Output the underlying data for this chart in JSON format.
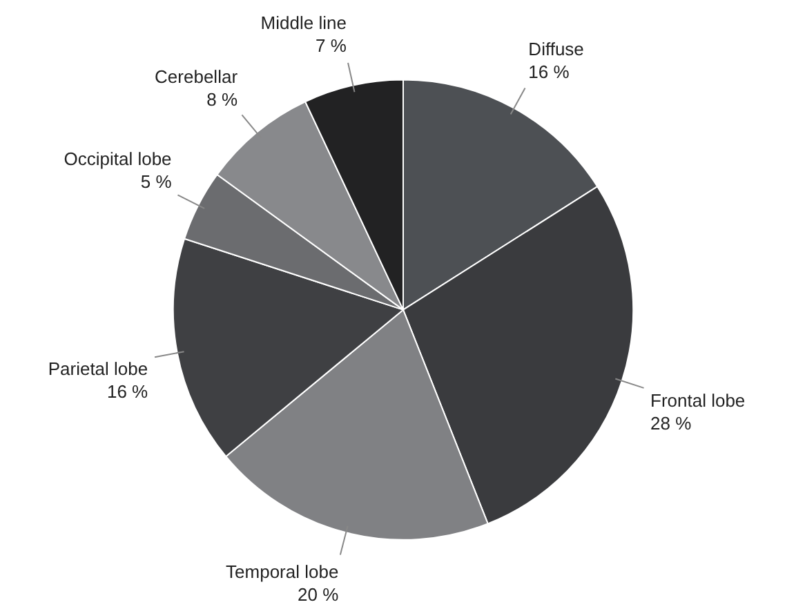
{
  "chart_data": {
    "type": "pie",
    "categories": [
      "Diffuse",
      "Frontal lobe",
      "Temporal lobe",
      "Parietal lobe",
      "Occipital lobe",
      "Cerebellar",
      "Middle line"
    ],
    "values": [
      16,
      28,
      20,
      16,
      5,
      8,
      7
    ],
    "value_labels": [
      "16 %",
      "28 %",
      "20 %",
      "16 %",
      "5 %",
      "8 %",
      "7 %"
    ],
    "colors": [
      "#4d5054",
      "#3a3b3e",
      "#808184",
      "#3f4043",
      "#6b6c6f",
      "#88898c",
      "#222223"
    ]
  }
}
